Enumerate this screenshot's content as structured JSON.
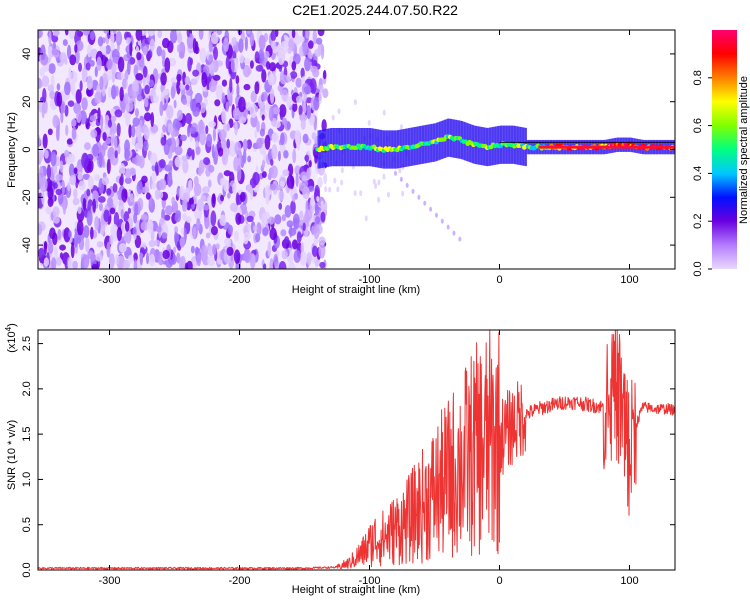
{
  "title": "C2E1.2025.244.07.50.R22",
  "chart_data": [
    {
      "type": "heatmap",
      "name": "spectrogram",
      "xlabel": "Height of straight line (km)",
      "ylabel": "Frequency (Hz)",
      "xlim": [
        -355,
        135
      ],
      "ylim": [
        -50,
        50
      ],
      "xticks": [
        -300,
        -200,
        -100,
        0,
        100
      ],
      "xtick_labels": [
        "-300",
        "-200",
        "-100",
        "0",
        "100"
      ],
      "yticks": [
        -40,
        -20,
        0,
        20,
        40
      ],
      "ytick_labels": [
        "-40",
        "-20",
        "0",
        "20",
        "40"
      ],
      "colorbar": {
        "label": "Normalized spectral amplitude",
        "range": [
          0,
          1
        ],
        "ticks": [
          0.0,
          0.2,
          0.4,
          0.6,
          0.8
        ],
        "tick_labels": [
          "0.0",
          "0.2",
          "0.4",
          "0.6",
          "0.8"
        ],
        "colors": [
          "#e8d8ff",
          "#b47cff",
          "#6a00e0",
          "#0010ff",
          "#00c8ff",
          "#00ff80",
          "#80ff00",
          "#ffff00",
          "#ff8000",
          "#ff0000",
          "#ff0070"
        ]
      },
      "regions": [
        {
          "kind": "noise",
          "x_range": [
            -355,
            -140
          ],
          "y_range": [
            -50,
            50
          ],
          "level": 0.15
        },
        {
          "kind": "signal",
          "x_range": [
            -140,
            135
          ],
          "center_frequency_hz": 1,
          "level": 0.8
        }
      ],
      "signal_track": {
        "x": [
          -140,
          -130,
          -120,
          -110,
          -100,
          -90,
          -80,
          -70,
          -60,
          -50,
          -40,
          -30,
          -20,
          -10,
          0,
          10,
          20,
          40,
          60,
          80,
          90,
          100,
          110,
          120,
          135
        ],
        "y": [
          0,
          1,
          1,
          1,
          1,
          0,
          0,
          1,
          2,
          3,
          5,
          4,
          2,
          1,
          2,
          2,
          1,
          1,
          1,
          1,
          2,
          2,
          1,
          1,
          1
        ]
      }
    },
    {
      "type": "line",
      "name": "snr",
      "xlabel": "Height of straight line (km)",
      "ylabel": "SNR (10 * v/v)",
      "y_multiplier_label": "(x10",
      "y_multiplier_exponent": "4",
      "y_multiplier_close": ")",
      "xlim": [
        -355,
        135
      ],
      "ylim": [
        0,
        2.65
      ],
      "xticks": [
        -300,
        -200,
        -100,
        0,
        100
      ],
      "xtick_labels": [
        "-300",
        "-200",
        "-100",
        "0",
        "100"
      ],
      "yticks": [
        0.0,
        0.5,
        1.0,
        1.5,
        2.0,
        2.5
      ],
      "ytick_labels": [
        "0.0",
        "0.5",
        "1.0",
        "1.5",
        "2.0",
        "2.5"
      ],
      "color": "#ee3333",
      "series": [
        {
          "x": [
            -355,
            -300,
            -250,
            -200,
            -150,
            -125,
            -115,
            -105,
            -100,
            -95,
            -90,
            -85,
            -80,
            -75,
            -70,
            -60,
            -50,
            -40,
            -30,
            -20,
            -10,
            0,
            10,
            20,
            30,
            40,
            50,
            60,
            70,
            80,
            85,
            90,
            95,
            100,
            105,
            110,
            120,
            130,
            135
          ],
          "y": [
            0.02,
            0.02,
            0.02,
            0.02,
            0.02,
            0.03,
            0.08,
            0.2,
            0.28,
            0.35,
            0.35,
            0.4,
            0.45,
            0.5,
            0.55,
            0.7,
            0.85,
            1.0,
            1.15,
            1.3,
            1.4,
            1.45,
            1.6,
            1.72,
            1.78,
            1.82,
            1.85,
            1.85,
            1.82,
            1.8,
            1.85,
            2.0,
            1.7,
            1.3,
            1.6,
            1.8,
            1.78,
            1.78,
            1.76
          ]
        }
      ]
    }
  ]
}
